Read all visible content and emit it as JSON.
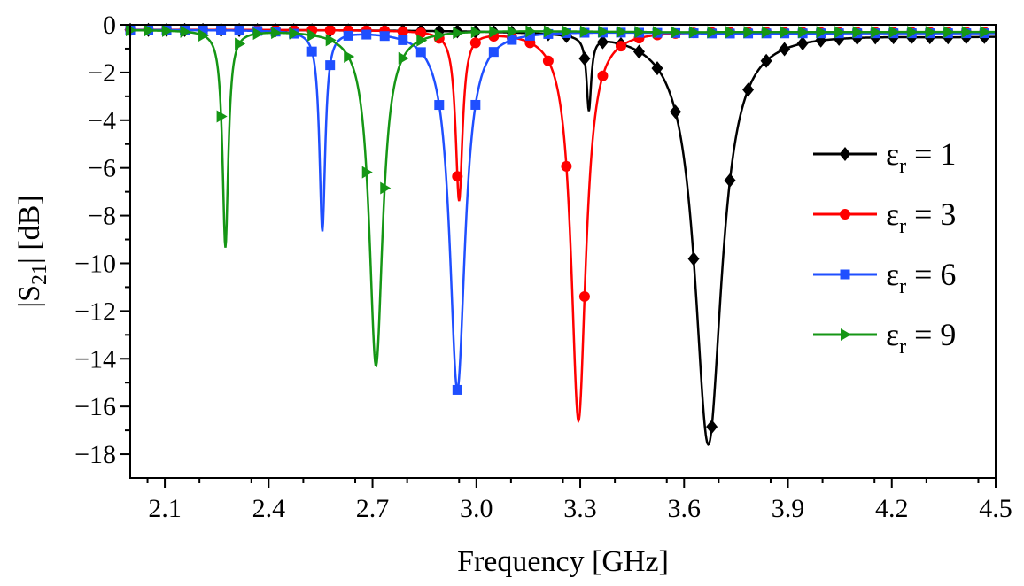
{
  "chart_data": {
    "type": "line",
    "title": "",
    "xlabel": "Frequency [GHz]",
    "ylabel": {
      "base": "|S",
      "sub": "21",
      "rest": "| [dB]"
    },
    "xlim": [
      2.0,
      4.5
    ],
    "ylim": [
      -19,
      0
    ],
    "xticks": [
      2.1,
      2.4,
      2.7,
      3.0,
      3.3,
      3.6,
      3.9,
      4.2,
      4.5
    ],
    "xtick_labels": [
      "2.1",
      "2.4",
      "2.7",
      "3.0",
      "3.3",
      "3.6",
      "3.9",
      "4.2",
      "4.5"
    ],
    "yticks": [
      0,
      -2,
      -4,
      -6,
      -8,
      -10,
      -12,
      -14,
      -16,
      -18
    ],
    "ytick_labels": [
      "0",
      "−2",
      "−4",
      "−6",
      "−8",
      "−10",
      "−12",
      "−14",
      "−16",
      "−18"
    ],
    "legend_position": "right",
    "series": [
      {
        "name": "εr = 1",
        "sym": "ε",
        "sub": "r",
        "suffix": " = 1",
        "color": "#000000",
        "marker": "diamond",
        "resonances": [
          {
            "f0": 3.67,
            "depth": -17.6,
            "width": 0.07
          },
          {
            "f0": 3.325,
            "depth": -3.3,
            "width": 0.012
          }
        ],
        "baseline": -0.2,
        "tail": -0.45,
        "tail_start": 3.75
      },
      {
        "name": "εr = 3",
        "sym": "ε",
        "sub": "r",
        "suffix": " = 3",
        "color": "#ff0000",
        "marker": "circle",
        "resonances": [
          {
            "f0": 3.295,
            "depth": -16.6,
            "width": 0.038
          },
          {
            "f0": 2.95,
            "depth": -7.3,
            "width": 0.018
          }
        ],
        "baseline": -0.2,
        "tail": -0.3,
        "tail_start": 3.4
      },
      {
        "name": "εr = 6",
        "sym": "ε",
        "sub": "r",
        "suffix": " = 6",
        "color": "#1f4fff",
        "marker": "square",
        "resonances": [
          {
            "f0": 2.945,
            "depth": -15.3,
            "width": 0.04
          },
          {
            "f0": 2.555,
            "depth": -8.6,
            "width": 0.015
          }
        ],
        "baseline": -0.2,
        "tail": -0.35,
        "tail_start": 3.1
      },
      {
        "name": "εr = 9",
        "sym": "ε",
        "sub": "r",
        "suffix": " = 9",
        "color": "#159615",
        "marker": "triangle-right",
        "resonances": [
          {
            "f0": 2.71,
            "depth": -14.3,
            "width": 0.035
          },
          {
            "f0": 2.275,
            "depth": -9.3,
            "width": 0.015
          }
        ],
        "baseline": -0.2,
        "tail": -0.3,
        "tail_start": 2.95
      }
    ]
  }
}
